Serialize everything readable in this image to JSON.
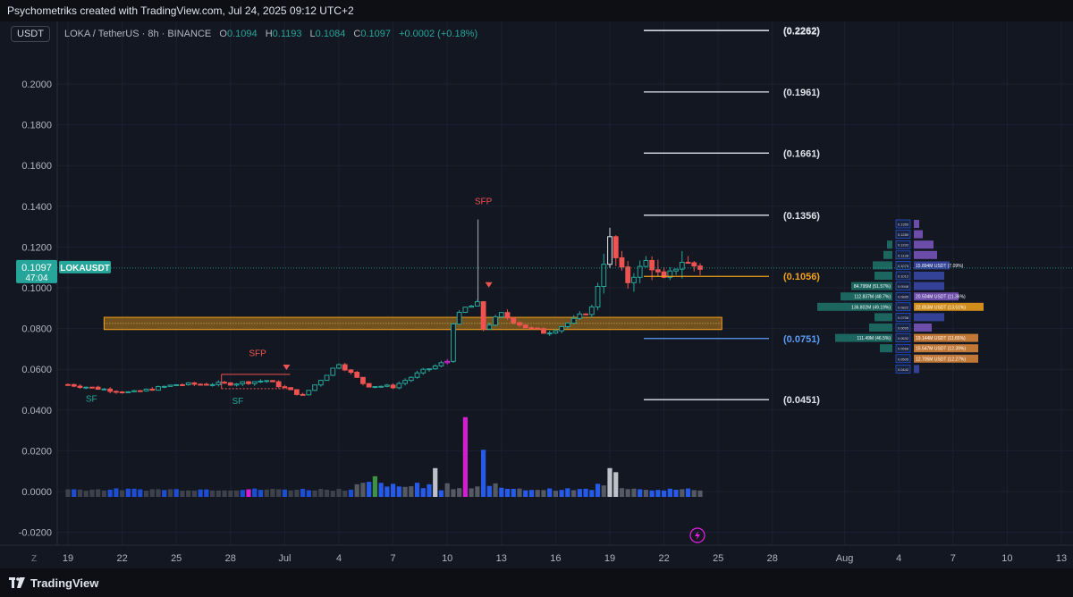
{
  "header": {
    "caption": "Psychometriks created with TradingView.com, Jul 24, 2025 09:12 UTC+2"
  },
  "symbol_bar": {
    "currency_badge": "USDT",
    "title": "LOKA / TetherUS · 8h · BINANCE",
    "ohlc": [
      {
        "key": "O",
        "value": "0.1094"
      },
      {
        "key": "H",
        "value": "0.1193"
      },
      {
        "key": "L",
        "value": "0.1084"
      },
      {
        "key": "C",
        "value": "0.1097"
      }
    ],
    "change": "+0.0002 (+0.18%)"
  },
  "price_tag": {
    "price": "0.1097",
    "countdown": "47:04",
    "ticker": "LOKAUSDT"
  },
  "footer": {
    "brand": "TradingView",
    "timezone_button": "Z"
  },
  "colors": {
    "up": "#26a69a",
    "down": "#ef5350",
    "volume_blue": "#2962ff",
    "magenta": "#e91ee3",
    "zone": "#f2a21a",
    "background": "#131722"
  },
  "chart_data": {
    "type": "candlestick",
    "y_ticks": [
      "0.2000",
      "0.1800",
      "0.1600",
      "0.1400",
      "0.1200",
      "0.1000",
      "0.0800",
      "0.0600",
      "0.0400",
      "0.0200",
      "0.0000",
      "-0.0200"
    ],
    "ylim": [
      -0.024,
      0.222
    ],
    "x_ticks": [
      {
        "label": "19",
        "day": 0
      },
      {
        "label": "22",
        "day": 3
      },
      {
        "label": "25",
        "day": 6
      },
      {
        "label": "28",
        "day": 9
      },
      {
        "label": "Jul",
        "day": 12
      },
      {
        "label": "4",
        "day": 15
      },
      {
        "label": "7",
        "day": 18
      },
      {
        "label": "10",
        "day": 21
      },
      {
        "label": "13",
        "day": 24
      },
      {
        "label": "16",
        "day": 27
      },
      {
        "label": "19",
        "day": 30
      },
      {
        "label": "22",
        "day": 33
      },
      {
        "label": "25",
        "day": 36
      },
      {
        "label": "28",
        "day": 39
      },
      {
        "label": "Aug",
        "day": 43
      },
      {
        "label": "4",
        "day": 46
      },
      {
        "label": "7",
        "day": 49
      },
      {
        "label": "10",
        "day": 52
      },
      {
        "label": "13",
        "day": 55
      }
    ],
    "xlim_days": [
      -0.5,
      55.6
    ],
    "candle_key_prices": [
      {
        "day": 0,
        "price": 0.0525
      },
      {
        "day": 3.5,
        "price": 0.0485
      },
      {
        "day": 6,
        "price": 0.0525
      },
      {
        "day": 9,
        "price": 0.053
      },
      {
        "day": 11,
        "price": 0.0545
      },
      {
        "day": 13,
        "price": 0.047
      },
      {
        "day": 15,
        "price": 0.063
      },
      {
        "day": 16.5,
        "price": 0.052
      },
      {
        "day": 18,
        "price": 0.0515
      },
      {
        "day": 19.5,
        "price": 0.0585
      },
      {
        "day": 21,
        "price": 0.064
      },
      {
        "day": 21.2,
        "price": 0.082
      },
      {
        "day": 22,
        "price": 0.09
      },
      {
        "day": 22.7,
        "price": 0.092
      },
      {
        "day": 23,
        "price": 0.08
      },
      {
        "day": 24,
        "price": 0.087
      },
      {
        "day": 25.5,
        "price": 0.08
      },
      {
        "day": 26.5,
        "price": 0.078
      },
      {
        "day": 28,
        "price": 0.084
      },
      {
        "day": 29,
        "price": 0.09
      },
      {
        "day": 30,
        "price": 0.124
      },
      {
        "day": 30.3,
        "price": 0.115
      },
      {
        "day": 31,
        "price": 0.103
      },
      {
        "day": 32,
        "price": 0.113
      },
      {
        "day": 33,
        "price": 0.104
      },
      {
        "day": 34,
        "price": 0.113
      },
      {
        "day": 35,
        "price": 0.1097
      }
    ],
    "annotations": {
      "sfp_labels": [
        {
          "text": "SFP",
          "day": 23,
          "price": 0.141
        },
        {
          "text": "SFP",
          "day": 10.5,
          "price": 0.0665
        },
        {
          "text": "SF",
          "day": 1.3,
          "price": 0.044
        },
        {
          "text": "SF",
          "day": 9.4,
          "price": 0.043
        }
      ],
      "spike": {
        "day": 22.7,
        "high": 0.1335,
        "low": 0.0935
      },
      "zone": {
        "from_day": 2,
        "to_day": 36.2,
        "top": 0.0855,
        "bottom": 0.0795
      },
      "range_box": {
        "from_day": 8.5,
        "to_day": 12.3,
        "top": 0.0575,
        "bottom": 0.0505
      },
      "fib_levels": [
        {
          "label": "(0.2262)",
          "price": 0.2262,
          "color": "#e0e3eb"
        },
        {
          "label": "(0.1961)",
          "price": 0.1961,
          "color": "#e0e3eb"
        },
        {
          "label": "(0.1661)",
          "price": 0.1661,
          "color": "#e0e3eb"
        },
        {
          "label": "(0.1356)",
          "price": 0.1356,
          "color": "#e0e3eb"
        },
        {
          "label": "(0.1056)",
          "price": 0.1056,
          "color": "#f2a21a"
        },
        {
          "label": "(0.0751)",
          "price": 0.0751,
          "color": "#5b9cf6"
        },
        {
          "label": "(0.0451)",
          "price": 0.0451,
          "color": "#e0e3eb"
        }
      ]
    },
    "volume": {
      "scale_max": 0.0365,
      "highlights": [
        {
          "day": 9.9,
          "value": 0.0011,
          "color": "#e91ee3"
        },
        {
          "day": 16.9,
          "value": 0.0075,
          "color": "#43a047"
        },
        {
          "day": 20.4,
          "value": 0.0115,
          "color": "#d1d4dc"
        },
        {
          "day": 22,
          "value": 0.0365,
          "color": "#e91ee3"
        },
        {
          "day": 23.1,
          "value": 0.0205,
          "color": "#2962ff"
        },
        {
          "day": 30,
          "value": 0.0115,
          "color": "#d1d4dc"
        },
        {
          "day": 30.4,
          "value": 0.0095,
          "color": "#d1d4dc"
        }
      ]
    },
    "order_book": {
      "levels": [
        {
          "price": "0.1350",
          "bar": "",
          "bar_color": "#7e57c2",
          "width": 6
        },
        {
          "price": "0.1280",
          "bar": "",
          "bar_color": "#7e57c2",
          "width": 10
        },
        {
          "price": "0.1202",
          "bar": "",
          "bar_color": "#7e57c2",
          "width": 22
        },
        {
          "price": "0.1138",
          "bar": "",
          "bar_color": "#7e57c2",
          "width": 26
        },
        {
          "price": "0.1075",
          "bar": "15.894M USDT (7.09%)",
          "bar_color": "#3949ab",
          "width": 40
        },
        {
          "price": "0.1012",
          "bar": "",
          "bar_color": "#3949ab",
          "width": 34
        },
        {
          "price": "0.0948",
          "bar": "",
          "bar_color": "#3949ab",
          "width": 34
        },
        {
          "price": "0.0885",
          "bar": "20.504M USDT (11.36%)",
          "bar_color": "#7e57c2",
          "width": 50
        },
        {
          "price": "0.0822",
          "bar": "22.853M USDT (13.51%)",
          "bar_color": "#f2a21a",
          "width": 78
        },
        {
          "price": "0.0758",
          "bar": "",
          "bar_color": "#3949ab",
          "width": 34
        },
        {
          "price": "0.0695",
          "bar": "",
          "bar_color": "#7e57c2",
          "width": 20
        },
        {
          "price": "0.0632",
          "bar": "19.144M USDT (11.65%)",
          "bar_color": "#e08a3a",
          "width": 72
        },
        {
          "price": "0.0568",
          "bar": "15.547M USDT (12.39%)",
          "bar_color": "#e08a3a",
          "width": 72
        },
        {
          "price": "0.0505",
          "bar": "12.705M USDT (12.27%)",
          "bar_color": "#e08a3a",
          "width": 72
        },
        {
          "price": "0.0442",
          "bar": "",
          "bar_color": "#3949ab",
          "width": 6
        }
      ],
      "left_bars": [
        {
          "level": 7,
          "bar": "112.837M (48.7%)",
          "width": 58,
          "color": "#1e6f66"
        },
        {
          "level": 8,
          "bar": "136.802M (49.19%)",
          "width": 84,
          "color": "#1e6f66"
        },
        {
          "level": 11,
          "bar": "111.49M (46.5%)",
          "width": 64,
          "color": "#1e6f66"
        },
        {
          "level": 6,
          "bar": "84.795M (51.57%)",
          "width": 46,
          "color": "#1e6f66"
        },
        {
          "level": 10,
          "bar": "",
          "width": 26,
          "color": "#1e6f66"
        },
        {
          "level": 9,
          "bar": "",
          "width": 20,
          "color": "#1e6f66"
        },
        {
          "level": 12,
          "bar": "",
          "width": 14,
          "color": "#1e6f66"
        },
        {
          "level": 5,
          "bar": "",
          "width": 20,
          "color": "#1e6f66"
        },
        {
          "level": 4,
          "bar": "",
          "width": 22,
          "color": "#1e6f66"
        },
        {
          "level": 3,
          "bar": "",
          "width": 10,
          "color": "#1e6f66"
        },
        {
          "level": 2,
          "bar": "",
          "width": 6,
          "color": "#1e6f66"
        }
      ]
    }
  }
}
